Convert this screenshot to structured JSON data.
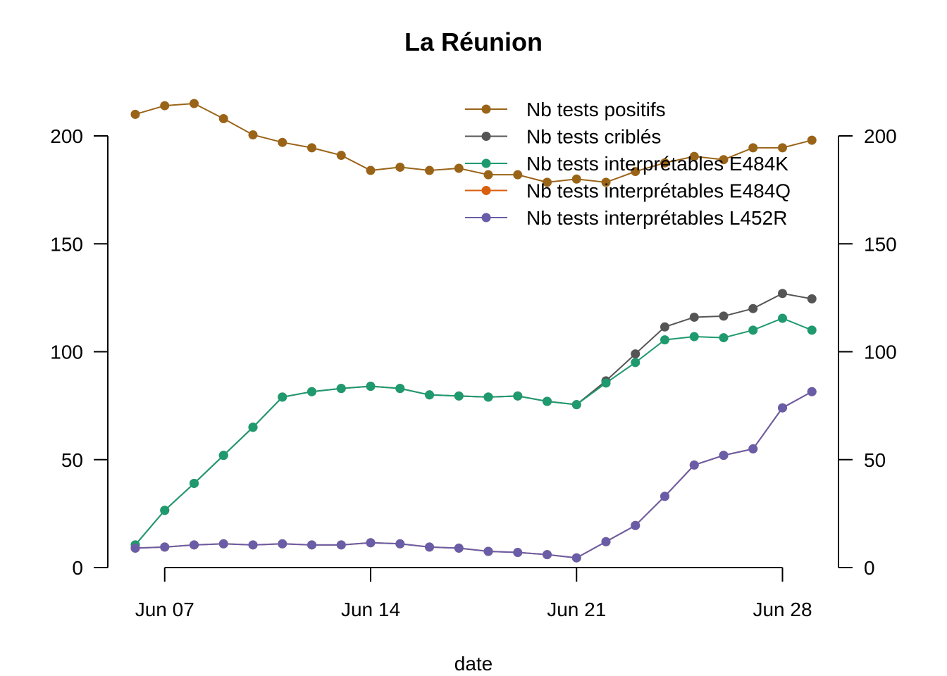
{
  "chart_data": {
    "type": "line",
    "title": "La Réunion",
    "xlabel": "date",
    "ylabel": "",
    "ylim": [
      0,
      200
    ],
    "y_ticks": [
      "0",
      "50",
      "100",
      "150",
      "200"
    ],
    "x_ticks": [
      {
        "date": "2021-06-07",
        "label": "Jun 07"
      },
      {
        "date": "2021-06-14",
        "label": "Jun 14"
      },
      {
        "date": "2021-06-21",
        "label": "Jun 21"
      },
      {
        "date": "2021-06-28",
        "label": "Jun 28"
      }
    ],
    "x": [
      "2021-06-06",
      "2021-06-07",
      "2021-06-08",
      "2021-06-09",
      "2021-06-10",
      "2021-06-11",
      "2021-06-12",
      "2021-06-13",
      "2021-06-14",
      "2021-06-15",
      "2021-06-16",
      "2021-06-17",
      "2021-06-18",
      "2021-06-19",
      "2021-06-20",
      "2021-06-21",
      "2021-06-22",
      "2021-06-23",
      "2021-06-24",
      "2021-06-25",
      "2021-06-26",
      "2021-06-27",
      "2021-06-28",
      "2021-06-29"
    ],
    "legend_position": "top-right",
    "grid": false,
    "series": [
      {
        "name": "Nb tests positifs",
        "color": "#9A6418",
        "values": [
          210,
          214,
          215,
          208,
          200.5,
          197,
          194.5,
          191,
          184,
          185.5,
          184,
          185,
          182,
          182,
          178.5,
          180,
          178.5,
          183.5,
          187.5,
          190.5,
          189,
          194.5,
          194.5,
          198
        ]
      },
      {
        "name": "Nb tests criblés",
        "color": "#555555",
        "values": [
          10.5,
          26.5,
          39,
          52,
          65,
          79,
          81.5,
          83,
          84,
          83,
          80,
          79.5,
          79,
          79.5,
          77,
          75.5,
          86.5,
          99,
          111.5,
          116,
          116.5,
          120,
          127,
          124.5
        ]
      },
      {
        "name": "Nb tests interprétables E484K",
        "color": "#1F9A6E",
        "values": [
          10.5,
          26.5,
          39,
          52,
          65,
          79,
          81.5,
          83,
          84,
          83,
          80,
          79.5,
          79,
          79.5,
          77,
          75.5,
          85.5,
          95,
          105.5,
          107,
          106.5,
          110,
          115.5,
          110
        ]
      },
      {
        "name": "Nb tests interprétables E484Q",
        "color": "#D95F0E",
        "values": [
          9,
          9.5,
          10.5,
          11,
          10.5,
          11,
          10.5,
          10.5,
          11.5,
          11,
          9.5,
          9,
          7.5,
          7,
          6,
          4.5,
          12,
          19.5,
          33,
          47.5,
          52,
          55,
          74,
          81.5
        ]
      },
      {
        "name": "Nb tests interprétables L452R",
        "color": "#6A5DA8",
        "values": [
          9,
          9.5,
          10.5,
          11,
          10.5,
          11,
          10.5,
          10.5,
          11.5,
          11,
          9.5,
          9,
          7.5,
          7,
          6,
          4.5,
          12,
          19.5,
          33,
          47.5,
          52,
          55,
          74,
          81.5
        ]
      }
    ]
  }
}
